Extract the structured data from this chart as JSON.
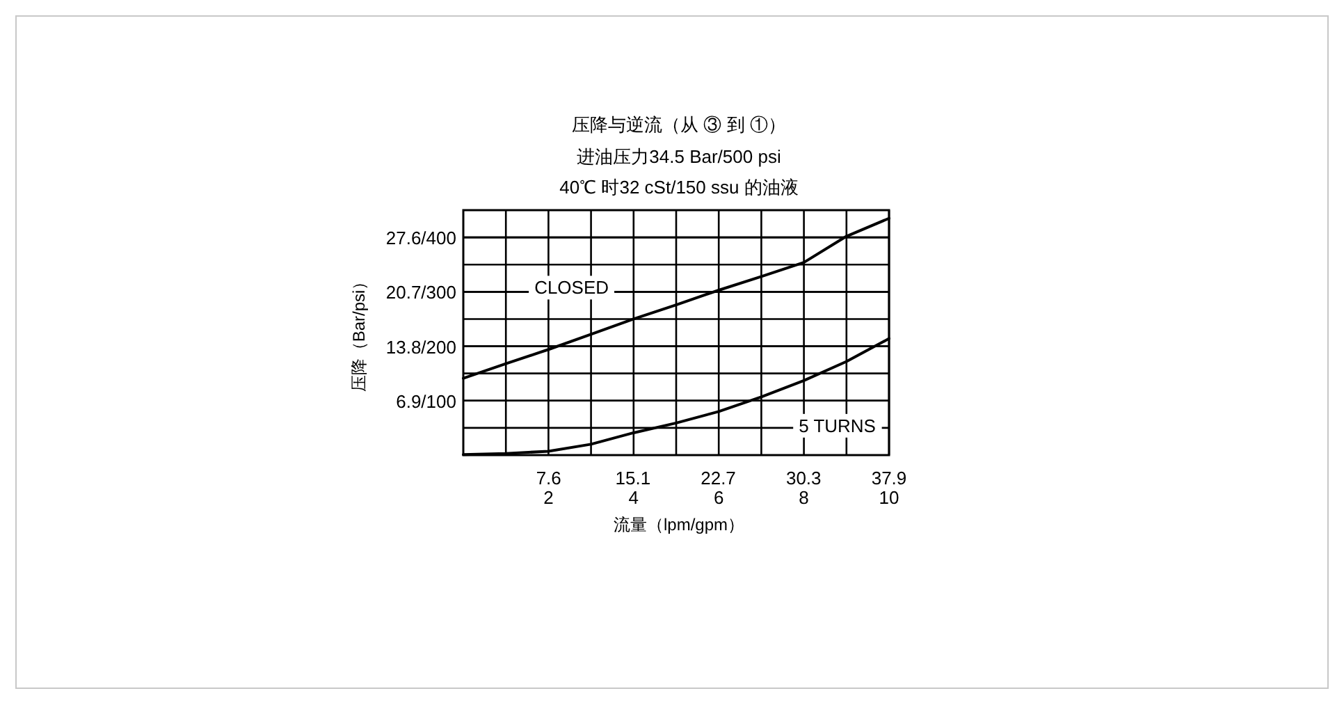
{
  "chart_data": {
    "type": "line",
    "title": "压降与逆流（从 ③ 到 ①）",
    "subtitle": "进油压力34.5 Bar/500 psi\n40℃ 时32 cSt/150 ssu 的油液",
    "xlabel": "流量（lpm/gpm）",
    "ylabel": "压降（Bar/psi）",
    "x": [
      0,
      1,
      2,
      3,
      4,
      5,
      6,
      7,
      8,
      9,
      10
    ],
    "series": [
      {
        "name": "CLOSED",
        "color": "#000000",
        "axis": "y2",
        "values": [
          141,
          168,
          194,
          222,
          250,
          276,
          303,
          328,
          354,
          402,
          435
        ]
      },
      {
        "name": "5 TURNS",
        "color": "#000000",
        "axis": "y2",
        "values": [
          1,
          3,
          7,
          20,
          41,
          59,
          80,
          107,
          137,
          172,
          214
        ]
      }
    ],
    "xlim": [
      0,
      10
    ],
    "xticks": [
      {
        "value": 1,
        "label": null
      },
      2,
      {
        "value": 3,
        "label": null
      },
      4,
      {
        "value": 5,
        "label": null
      },
      6,
      {
        "value": 7,
        "label": null
      },
      8,
      {
        "value": 9,
        "label": null
      },
      10
    ],
    "x2lim": [
      0,
      37.9
    ],
    "x2ticks": [
      7.6,
      15.1,
      22.7,
      30.3,
      37.9
    ],
    "ylim": [
      0,
      31.05
    ],
    "yticks": [
      {
        "value": 6.9,
        "label": "6.9/"
      },
      {
        "value": 13.8,
        "label": "13.8/"
      },
      {
        "value": 20.7,
        "label": "20.7/"
      },
      {
        "value": 27.6,
        "label": "27.6/"
      }
    ],
    "y2lim": [
      0,
      450
    ],
    "y2ticks": [
      {
        "value": 50,
        "label": null
      },
      100,
      {
        "value": 150,
        "label": null
      },
      200,
      {
        "value": 250,
        "label": null
      },
      300,
      {
        "value": 350,
        "label": null
      },
      400
    ],
    "grid": true,
    "legend": false,
    "marker": "none",
    "line_style": "solid"
  }
}
